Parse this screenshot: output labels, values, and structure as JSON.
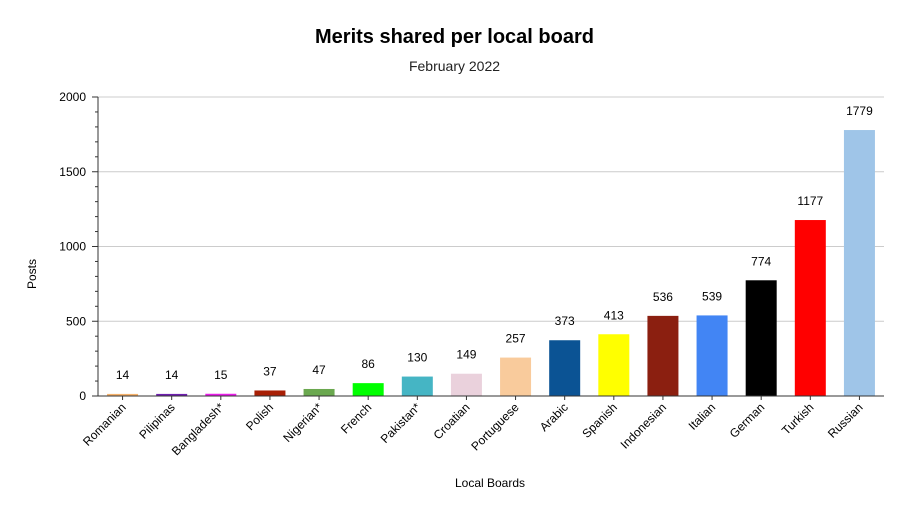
{
  "chart_data": {
    "type": "bar",
    "title": "Merits shared per local board",
    "subtitle": "February 2022",
    "xlabel": "Local Boards",
    "ylabel": "Posts",
    "ylim": [
      0,
      2000
    ],
    "yticks": [
      0,
      500,
      1000,
      1500,
      2000
    ],
    "grid": true,
    "categories": [
      "Romanian",
      "Pilipinas",
      "Bangladesh*",
      "Polish",
      "Nigerian*",
      "French",
      "Pakistan*",
      "Croatian",
      "Portuguese",
      "Arabic",
      "Spanish",
      "Indonesian",
      "Italian",
      "German",
      "Turkish",
      "Russian"
    ],
    "values": [
      14,
      14,
      15,
      37,
      47,
      86,
      130,
      149,
      257,
      373,
      413,
      536,
      539,
      774,
      1177,
      1779
    ],
    "colors": [
      "#f6b26b",
      "#6f1fb0",
      "#e81ee8",
      "#a81f05",
      "#6aa84f",
      "#00ff00",
      "#45b5c4",
      "#ead1dc",
      "#f9cb9c",
      "#0b5394",
      "#ffff00",
      "#8b1f10",
      "#4285f4",
      "#000000",
      "#ff0000",
      "#9fc5e8"
    ]
  }
}
